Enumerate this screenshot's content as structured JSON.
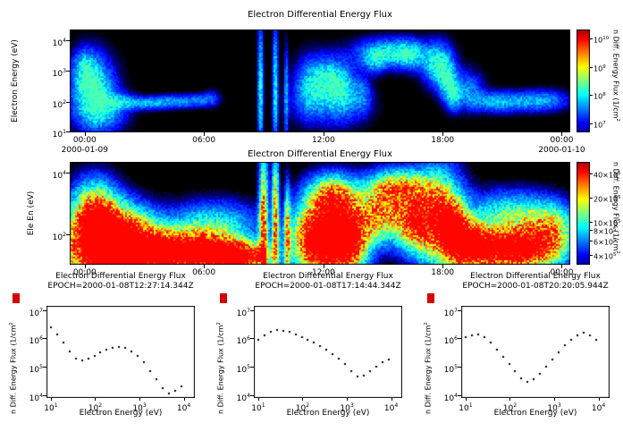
{
  "figure": {
    "background": "#ffffff",
    "marker_color": "#d40000",
    "axis_color": "#000000"
  },
  "chart_data": [
    {
      "type": "heatmap",
      "title": "Electron Differential Energy Flux",
      "ylabel": "Electron Energy (eV)",
      "colorbar_label": "n Diff. Energy Flux (1/cm^2",
      "x_ticks": [
        {
          "label": "00:00",
          "f": 0.03
        },
        {
          "label": "06:00",
          "f": 0.268
        },
        {
          "label": "12:00",
          "f": 0.507
        },
        {
          "label": "18:00",
          "f": 0.745
        },
        {
          "label": "00:00",
          "f": 0.983
        }
      ],
      "x_dates": [
        {
          "label": "2000-01-09",
          "f": 0.03
        },
        {
          "label": "2000-01-10",
          "f": 0.983
        }
      ],
      "y_ticks": [
        {
          "label": "10^4",
          "f": 0.104
        },
        {
          "label": "10^3",
          "f": 0.403
        },
        {
          "label": "10^2",
          "f": 0.701
        },
        {
          "label": "10^1",
          "f": 0.995
        }
      ],
      "colorbar_ticks": [
        {
          "label": "10^10",
          "f": 0.084
        },
        {
          "label": "10^9",
          "f": 0.361
        },
        {
          "label": "10^8",
          "f": 0.639
        },
        {
          "label": "10^7",
          "f": 0.917
        }
      ],
      "t_range": [
        -0.76,
        24.45
      ],
      "logE_range": [
        1.0,
        4.35
      ],
      "palette": "blue",
      "blobs": [
        [
          0.4,
          2.4,
          0.7,
          0.7,
          1.0
        ],
        [
          0.0,
          3.1,
          0.4,
          0.4,
          0.5
        ],
        [
          0.9,
          1.7,
          0.8,
          0.45,
          0.55
        ],
        [
          1.8,
          2.0,
          0.5,
          0.16,
          0.45
        ],
        [
          2.6,
          1.95,
          0.5,
          0.14,
          0.4
        ],
        [
          3.4,
          1.95,
          0.5,
          0.14,
          0.42
        ],
        [
          4.2,
          2.0,
          0.5,
          0.14,
          0.38
        ],
        [
          5.0,
          2.0,
          0.5,
          0.14,
          0.42
        ],
        [
          5.8,
          2.05,
          0.4,
          0.14,
          0.35
        ],
        [
          6.4,
          2.1,
          0.3,
          0.18,
          0.3
        ],
        [
          8.85,
          2.5,
          0.09,
          1.4,
          0.95
        ],
        [
          9.6,
          2.5,
          0.09,
          1.4,
          0.85
        ],
        [
          10.15,
          2.2,
          0.07,
          1.0,
          0.6
        ],
        [
          11.3,
          2.5,
          0.5,
          0.6,
          0.6
        ],
        [
          12.2,
          2.7,
          0.55,
          0.5,
          0.7
        ],
        [
          13.0,
          2.4,
          0.5,
          0.55,
          0.65
        ],
        [
          12.3,
          1.9,
          1.3,
          0.5,
          0.3
        ],
        [
          14.0,
          2.2,
          0.3,
          0.4,
          0.4
        ],
        [
          15.3,
          3.6,
          1.1,
          0.3,
          0.8
        ],
        [
          16.4,
          3.5,
          0.5,
          0.3,
          0.6
        ],
        [
          14.6,
          3.3,
          0.4,
          0.25,
          0.5
        ],
        [
          17.8,
          3.2,
          0.5,
          0.45,
          0.95
        ],
        [
          18.3,
          2.6,
          0.3,
          0.4,
          0.75
        ],
        [
          18.6,
          2.15,
          0.25,
          0.3,
          0.55
        ],
        [
          19.3,
          2.4,
          0.5,
          0.4,
          0.5
        ],
        [
          20.5,
          2.0,
          0.8,
          0.22,
          0.4
        ],
        [
          21.8,
          2.0,
          1.2,
          0.22,
          0.42
        ],
        [
          23.2,
          2.05,
          0.8,
          0.22,
          0.4
        ]
      ]
    },
    {
      "type": "heatmap",
      "title": "Electron Differential Energy Flux",
      "ylabel": "Ele En (eV)",
      "colorbar_label": "n Diff. Energy Flux (1/cm^2",
      "x_ticks": [
        {
          "label": "00:00",
          "f": 0.03
        },
        {
          "label": "06:00",
          "f": 0.268
        },
        {
          "label": "12:00",
          "f": 0.507
        },
        {
          "label": "18:00",
          "f": 0.745
        },
        {
          "label": "00:00",
          "f": 0.983
        }
      ],
      "y_ticks": [
        {
          "label": "10^4",
          "f": 0.104
        },
        {
          "label": "10^2",
          "f": 0.701
        }
      ],
      "colorbar_ticks": [
        {
          "label": "40×10^5",
          "f": 0.109
        },
        {
          "label": "20×10^5",
          "f": 0.347
        },
        {
          "label": "10×10^5",
          "f": 0.586
        },
        {
          "label": "8×10^5",
          "f": 0.663
        },
        {
          "label": "6×10^5",
          "f": 0.762
        },
        {
          "label": "4×10^5",
          "f": 0.901
        }
      ],
      "t_range": [
        -0.76,
        24.45
      ],
      "logE_range": [
        1.0,
        4.35
      ],
      "palette": "jet",
      "blobs": [
        [
          0.5,
          2.6,
          0.8,
          0.7,
          0.95
        ],
        [
          1.0,
          1.5,
          1.5,
          0.8,
          1.0
        ],
        [
          2.0,
          2.2,
          1.0,
          0.5,
          0.55
        ],
        [
          3.0,
          1.4,
          2.0,
          0.5,
          0.95
        ],
        [
          5.5,
          1.4,
          1.5,
          0.45,
          0.9
        ],
        [
          6.5,
          2.3,
          1.5,
          0.5,
          0.4
        ],
        [
          7.2,
          1.3,
          1.0,
          0.35,
          0.85
        ],
        [
          8.3,
          1.2,
          0.8,
          0.3,
          0.7
        ],
        [
          9.0,
          2.5,
          0.15,
          1.5,
          0.9
        ],
        [
          9.6,
          2.5,
          0.12,
          1.5,
          0.85
        ],
        [
          10.2,
          2.0,
          0.1,
          1.0,
          0.7
        ],
        [
          11.5,
          1.8,
          0.8,
          0.8,
          1.0
        ],
        [
          12.5,
          2.0,
          0.8,
          0.9,
          1.0
        ],
        [
          13.4,
          1.8,
          0.6,
          0.7,
          0.95
        ],
        [
          12.5,
          3.3,
          0.8,
          0.4,
          0.6
        ],
        [
          14.8,
          2.6,
          0.8,
          0.6,
          0.8
        ],
        [
          15.8,
          3.5,
          1.0,
          0.4,
          0.75
        ],
        [
          16.5,
          2.4,
          0.6,
          0.6,
          0.85
        ],
        [
          17.8,
          2.5,
          0.8,
          1.0,
          1.0
        ],
        [
          18.6,
          2.0,
          0.5,
          0.6,
          0.9
        ],
        [
          19.5,
          1.6,
          0.6,
          0.5,
          0.9
        ],
        [
          20.8,
          1.5,
          1.2,
          0.45,
          0.9
        ],
        [
          22.5,
          1.5,
          1.2,
          0.45,
          0.9
        ],
        [
          21.5,
          2.6,
          1.5,
          0.5,
          0.5
        ],
        [
          23.5,
          2.2,
          0.8,
          0.5,
          0.55
        ]
      ]
    },
    {
      "type": "scatter",
      "title": "Electron Differential Energy Flux",
      "subtitle": "EPOCH=2000-01-08T12:27:14.344Z",
      "xlabel": "Electron Energy (eV)",
      "ylabel": "n Diff. Energy Flux (1/cm^2",
      "x_ticks": [
        {
          "label": "10^1",
          "f": 0.03
        },
        {
          "label": "10^2",
          "f": 0.328
        },
        {
          "label": "10^3",
          "f": 0.627
        },
        {
          "label": "10^4",
          "f": 0.925
        }
      ],
      "y_ticks": [
        {
          "label": "10^7",
          "f": 0.046
        },
        {
          "label": "10^6",
          "f": 0.354
        },
        {
          "label": "10^5",
          "f": 0.662
        },
        {
          "label": "10^4",
          "f": 0.969
        }
      ],
      "logE_range": [
        0.9,
        4.25
      ],
      "logF_range": [
        3.9,
        7.15
      ],
      "points_logE": [
        1.0,
        1.14,
        1.28,
        1.42,
        1.56,
        1.7,
        1.84,
        1.98,
        2.12,
        2.26,
        2.4,
        2.54,
        2.68,
        2.82,
        2.96,
        3.1,
        3.24,
        3.38,
        3.52,
        3.66,
        3.8,
        3.94
      ],
      "points_logF": [
        6.4,
        6.15,
        5.85,
        5.55,
        5.3,
        5.22,
        5.28,
        5.38,
        5.5,
        5.6,
        5.68,
        5.7,
        5.66,
        5.55,
        5.38,
        5.15,
        4.85,
        4.55,
        4.25,
        4.05,
        4.15,
        4.3
      ]
    },
    {
      "type": "scatter",
      "title": "Electron Differential Energy Flux",
      "subtitle": "EPOCH=2000-01-08T17:14:44.344Z",
      "xlabel": "Electron Energy (eV)",
      "ylabel": "n Diff. Energy Flux (1/cm^2",
      "x_ticks": [
        {
          "label": "10^1",
          "f": 0.03
        },
        {
          "label": "10^2",
          "f": 0.328
        },
        {
          "label": "10^3",
          "f": 0.627
        },
        {
          "label": "10^4",
          "f": 0.925
        }
      ],
      "y_ticks": [
        {
          "label": "10^7",
          "f": 0.046
        },
        {
          "label": "10^6",
          "f": 0.354
        },
        {
          "label": "10^5",
          "f": 0.662
        },
        {
          "label": "10^4",
          "f": 0.969
        }
      ],
      "logE_range": [
        0.9,
        4.25
      ],
      "logF_range": [
        3.9,
        7.15
      ],
      "points_logE": [
        1.0,
        1.14,
        1.28,
        1.42,
        1.56,
        1.7,
        1.84,
        1.98,
        2.12,
        2.26,
        2.4,
        2.54,
        2.68,
        2.82,
        2.96,
        3.1,
        3.24,
        3.38,
        3.52,
        3.66,
        3.8,
        3.94
      ],
      "points_logF": [
        5.95,
        6.1,
        6.25,
        6.3,
        6.28,
        6.22,
        6.15,
        6.05,
        5.95,
        5.85,
        5.72,
        5.6,
        5.45,
        5.3,
        5.1,
        4.85,
        4.65,
        4.7,
        4.85,
        5.0,
        5.15,
        5.25
      ]
    },
    {
      "type": "scatter",
      "title": "Electron Differential Energy Flux",
      "subtitle": "EPOCH=2000-01-08T20:20:05.944Z",
      "xlabel": "Electron Energy (eV)",
      "ylabel": "n Diff. Energy Flux (1/cm^2",
      "x_ticks": [
        {
          "label": "10^1",
          "f": 0.03
        },
        {
          "label": "10^2",
          "f": 0.328
        },
        {
          "label": "10^3",
          "f": 0.627
        },
        {
          "label": "10^4",
          "f": 0.925
        }
      ],
      "y_ticks": [
        {
          "label": "10^7",
          "f": 0.046
        },
        {
          "label": "10^6",
          "f": 0.354
        },
        {
          "label": "10^5",
          "f": 0.662
        },
        {
          "label": "10^4",
          "f": 0.969
        }
      ],
      "logE_range": [
        0.9,
        4.25
      ],
      "logF_range": [
        3.9,
        7.15
      ],
      "points_logE": [
        1.0,
        1.14,
        1.28,
        1.42,
        1.56,
        1.7,
        1.84,
        1.98,
        2.12,
        2.26,
        2.4,
        2.54,
        2.68,
        2.82,
        2.96,
        3.1,
        3.24,
        3.38,
        3.52,
        3.66,
        3.8,
        3.94
      ],
      "points_logF": [
        6.05,
        6.12,
        6.15,
        6.05,
        5.85,
        5.6,
        5.35,
        5.1,
        4.85,
        4.6,
        4.48,
        4.55,
        4.75,
        5.0,
        5.25,
        5.5,
        5.75,
        5.95,
        6.1,
        6.2,
        6.1,
        5.95
      ]
    }
  ]
}
